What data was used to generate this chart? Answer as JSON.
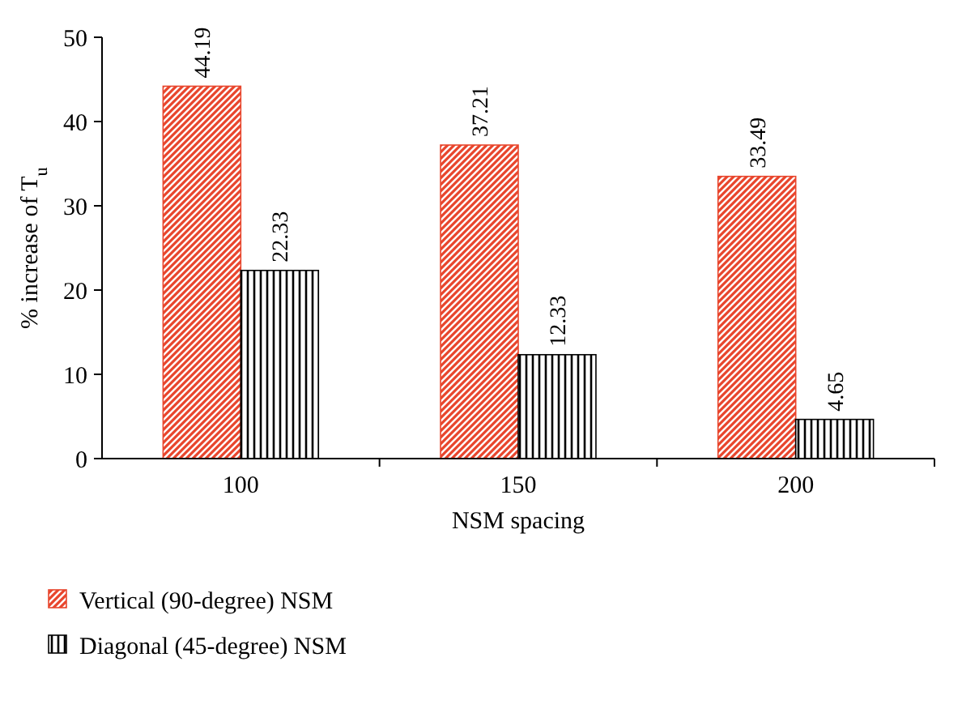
{
  "chart_data": {
    "type": "bar",
    "xlabel": "NSM spacing",
    "ylabel": "% increase of T$_{u}$",
    "categories": [
      "100",
      "150",
      "200"
    ],
    "series": [
      {
        "name": "Vertical (90-degree) NSM",
        "color": "#e8452c",
        "values": [
          44.19,
          37.21,
          33.49
        ]
      },
      {
        "name": "Diagonal (45-degree) NSM",
        "color": "#000000",
        "values": [
          22.33,
          12.33,
          4.65
        ]
      }
    ],
    "ylim": [
      0,
      50
    ],
    "yticks": [
      0,
      10,
      20,
      30,
      40,
      50
    ],
    "data_labels": true,
    "legend": "bottom left",
    "grid": false
  }
}
